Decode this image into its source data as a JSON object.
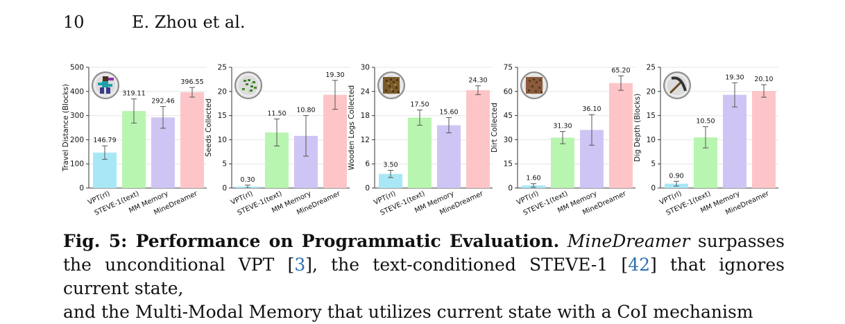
{
  "header": {
    "page_number": "10",
    "authors": "E. Zhou et al."
  },
  "categories": [
    "VPT(rl)",
    "STEVE-1(text)",
    "MM Memory",
    "MineDreamer"
  ],
  "colors": {
    "VPT(rl)": "#a8e8f6",
    "STEVE-1(text)": "#b8f5b0",
    "MM Memory": "#cfc5f4",
    "MineDreamer": "#fdc5c7"
  },
  "chart_data": [
    {
      "type": "bar",
      "ylabel": "Travel Distance (Blocks)",
      "icon": "steve-running-icon",
      "ylim": [
        0,
        500
      ],
      "yticks": [
        0,
        100,
        200,
        300,
        400,
        500
      ],
      "values": [
        146.79,
        319.11,
        292.46,
        396.55
      ],
      "errors": [
        28,
        50,
        45,
        20
      ],
      "value_labels": [
        "146.79",
        "319.11",
        "292.46",
        "396.55"
      ]
    },
    {
      "type": "bar",
      "ylabel": "Seeds Collected",
      "icon": "seeds-icon",
      "ylim": [
        0,
        25
      ],
      "yticks": [
        0,
        5,
        10,
        15,
        20,
        25
      ],
      "values": [
        0.3,
        11.5,
        10.8,
        19.3
      ],
      "errors": [
        0.3,
        2.8,
        4.2,
        3.0
      ],
      "value_labels": [
        "0.30",
        "11.50",
        "10.80",
        "19.30"
      ]
    },
    {
      "type": "bar",
      "ylabel": "Wooden Logs Collected",
      "icon": "wood-log-icon",
      "ylim": [
        0,
        30
      ],
      "yticks": [
        0,
        6,
        12,
        18,
        24,
        30
      ],
      "values": [
        3.5,
        17.5,
        15.6,
        24.3
      ],
      "errors": [
        0.9,
        1.9,
        1.9,
        1.1
      ],
      "value_labels": [
        "3.50",
        "17.50",
        "15.60",
        "24.30"
      ]
    },
    {
      "type": "bar",
      "ylabel": "Dirt Collected",
      "icon": "dirt-block-icon",
      "ylim": [
        0,
        75
      ],
      "yticks": [
        0,
        15,
        30,
        45,
        60,
        75
      ],
      "values": [
        1.6,
        31.3,
        36.1,
        65.2
      ],
      "errors": [
        1.1,
        3.8,
        9.5,
        4.5
      ],
      "value_labels": [
        "1.60",
        "31.30",
        "36.10",
        "65.20"
      ]
    },
    {
      "type": "bar",
      "ylabel": "Dig Depth (Blocks)",
      "icon": "pickaxe-icon",
      "ylim": [
        0,
        25
      ],
      "yticks": [
        0,
        5,
        10,
        15,
        20,
        25
      ],
      "values": [
        0.9,
        10.5,
        19.3,
        20.1
      ],
      "errors": [
        0.5,
        2.2,
        2.5,
        1.3
      ],
      "value_labels": [
        "0.90",
        "10.50",
        "19.30",
        "20.10"
      ]
    }
  ],
  "caption": {
    "label": "Fig. 5: Performance on Programmatic Evaluation.",
    "model": "MineDreamer",
    "text_1": " surpasses the unconditional VPT [",
    "cite_1": "3",
    "text_2": "], the text-conditioned STEVE-1 [",
    "cite_2": "42",
    "text_3": "] that ignores current state,",
    "line_3": "and the Multi-Modal Memory that utilizes current state with a CoI mechanism"
  }
}
